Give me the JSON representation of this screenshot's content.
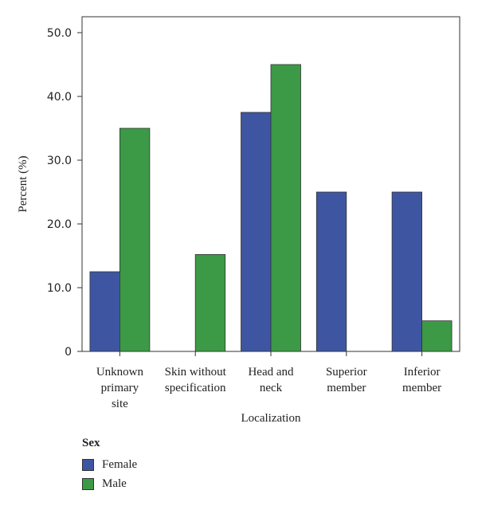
{
  "chart_data": {
    "type": "bar",
    "categories": [
      [
        "Unknown",
        "primary",
        "site"
      ],
      [
        "Skin without",
        "specification"
      ],
      [
        "Head and",
        "neck"
      ],
      [
        "Superior",
        "member"
      ],
      [
        "Inferior",
        "member"
      ]
    ],
    "series": [
      {
        "name": "Female",
        "color": "#3e56a1",
        "values": [
          12.5,
          0,
          37.5,
          25.0,
          25.0
        ]
      },
      {
        "name": "Male",
        "color": "#3c9a46",
        "values": [
          35.0,
          15.2,
          45.0,
          0,
          4.8
        ]
      }
    ],
    "xlabel": "Localization",
    "ylabel": "Percent (%)",
    "ylim": [
      0,
      52.5
    ],
    "yticks": [
      0,
      10.0,
      20.0,
      30.0,
      40.0,
      50.0
    ],
    "ytick_labels": [
      "0",
      "10.0",
      "20.0",
      "30.0",
      "40.0",
      "50.0"
    ],
    "grid": false,
    "legend": {
      "title": "Sex",
      "placement": "bottom-left"
    }
  }
}
